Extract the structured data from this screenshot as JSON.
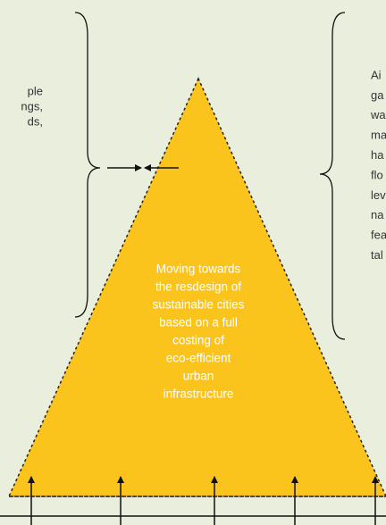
{
  "left_text": [
    "ple",
    "ngs,",
    "ds,"
  ],
  "right_text": [
    "Ai",
    "ga",
    "wa",
    "ma",
    "ha",
    "flo",
    "lev",
    "na",
    "fea",
    "tal"
  ],
  "center_text": [
    "Moving towards",
    "the resdesign of",
    "sustainable cities",
    "based on a full",
    "costing of",
    "eco-efficient",
    "urban",
    "infrastructure"
  ]
}
